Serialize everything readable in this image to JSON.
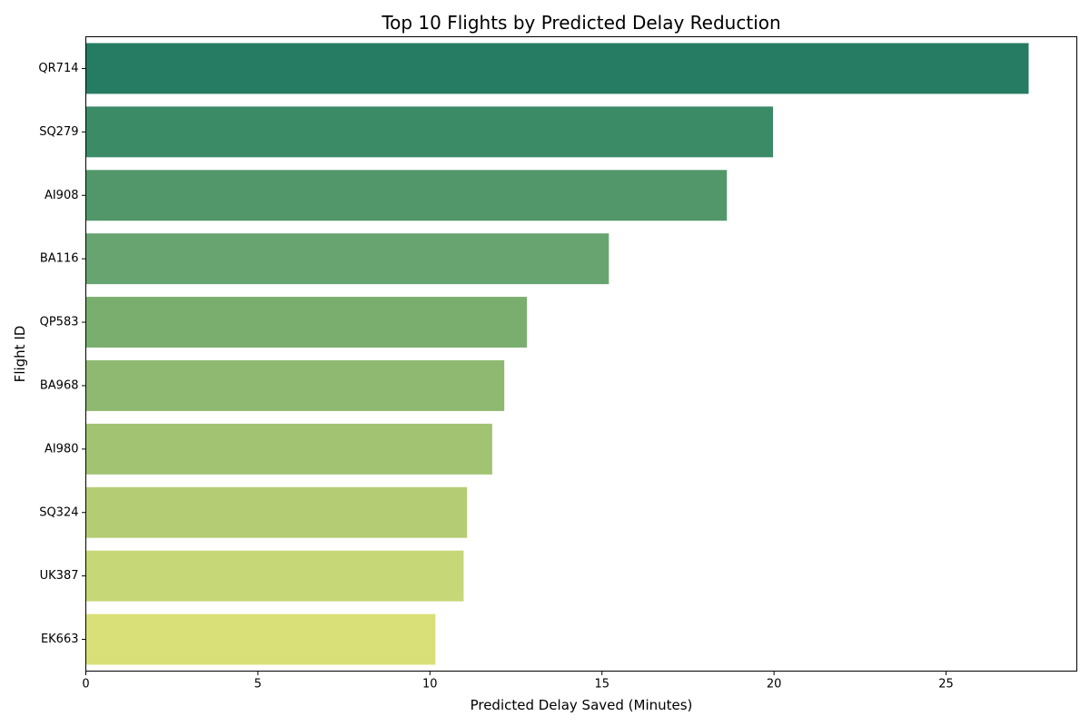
{
  "chart_data": {
    "type": "bar",
    "orientation": "horizontal",
    "title": "Top 10 Flights by Predicted Delay Reduction",
    "xlabel": "Predicted Delay Saved (Minutes)",
    "ylabel": "Flight ID",
    "xlim": [
      0,
      28.8
    ],
    "xticks": [
      0,
      5,
      10,
      15,
      20,
      25
    ],
    "grid": false,
    "legend": "none",
    "categories": [
      "QR714",
      "SQ279",
      "AI908",
      "BA116",
      "QP583",
      "BA968",
      "AI980",
      "SQ324",
      "UK387",
      "EK663"
    ],
    "series": [
      {
        "values": [
          27.4,
          19.97,
          18.63,
          15.2,
          12.82,
          12.16,
          11.81,
          11.08,
          10.98,
          10.16
        ]
      }
    ],
    "colors": [
      "#267c62",
      "#3b8b67",
      "#52976a",
      "#67a46f",
      "#7aae6f",
      "#8fb870",
      "#a1c372",
      "#b4cd75",
      "#c6d777",
      "#d9e078"
    ]
  }
}
